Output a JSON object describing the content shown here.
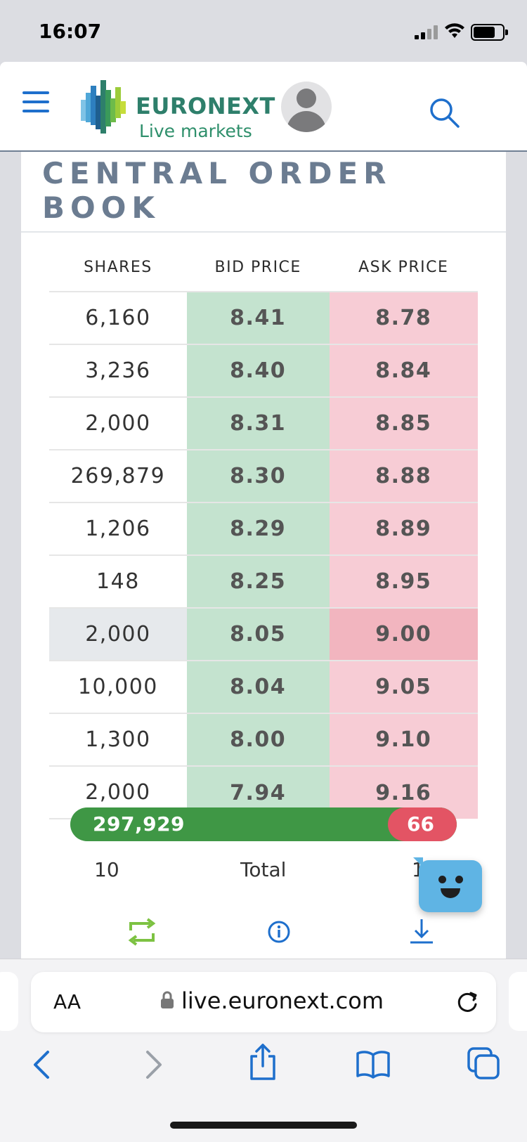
{
  "status": {
    "time": "16:07"
  },
  "header": {
    "brand": "EURONEXT",
    "subbrand": "Live markets"
  },
  "section": {
    "title": "CENTRAL ORDER BOOK"
  },
  "orderbook": {
    "columns": [
      "SHARES",
      "BID PRICE",
      "ASK PRICE"
    ],
    "rows": [
      {
        "shares": "6,160",
        "bid": "8.41",
        "ask": "8.78"
      },
      {
        "shares": "3,236",
        "bid": "8.40",
        "ask": "8.84"
      },
      {
        "shares": "2,000",
        "bid": "8.31",
        "ask": "8.85"
      },
      {
        "shares": "269,879",
        "bid": "8.30",
        "ask": "8.88"
      },
      {
        "shares": "1,206",
        "bid": "8.29",
        "ask": "8.89"
      },
      {
        "shares": "148",
        "bid": "8.25",
        "ask": "8.95"
      },
      {
        "shares": "2,000",
        "bid": "8.05",
        "ask": "9.00"
      },
      {
        "shares": "10,000",
        "bid": "8.04",
        "ask": "9.05"
      },
      {
        "shares": "1,300",
        "bid": "8.00",
        "ask": "9.10"
      },
      {
        "shares": "2,000",
        "bid": "7.94",
        "ask": "9.16"
      }
    ],
    "bid_total": "297,929",
    "ask_total": "66",
    "totals_left": "10",
    "totals_label": "Total",
    "totals_right": "1"
  },
  "safari": {
    "aa_label": "AA",
    "url": "live.euronext.com"
  },
  "colors": {
    "bid_bar": "#3f9745",
    "ask_bar": "#e35464",
    "bid_cell": "#c4e3cf",
    "ask_cell": "#f7ccd5",
    "brand": "#2e7f6b",
    "link_blue": "#1e6fcc"
  }
}
